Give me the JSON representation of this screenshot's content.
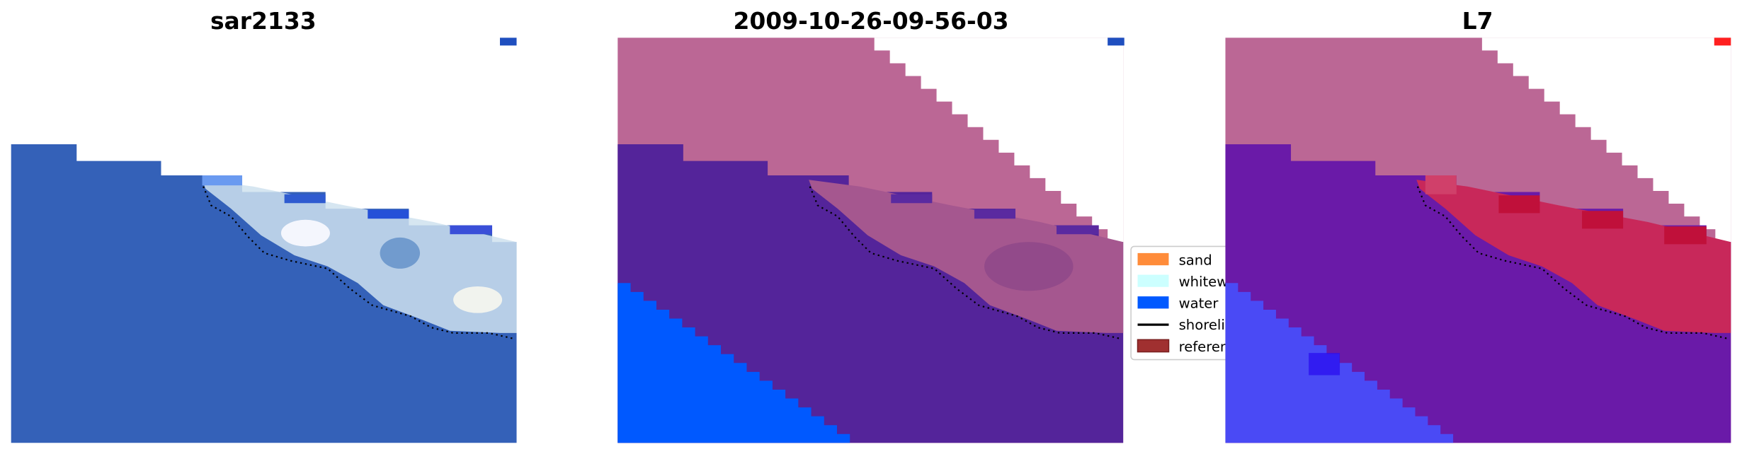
{
  "panels": [
    {
      "title": "sar2133",
      "marker_color": "#1f4fbf"
    },
    {
      "title": "2009-10-26-09-56-03",
      "marker_color": "#1f4fbf"
    },
    {
      "title": "L7",
      "marker_color": "#ff2020"
    }
  ],
  "legend": {
    "items": [
      {
        "label": "sand",
        "color": "#ff8c3a",
        "kind": "patch"
      },
      {
        "label": "whitewater",
        "color": "#ccffff",
        "kind": "patch"
      },
      {
        "label": "water",
        "color": "#0059ff",
        "kind": "patch"
      },
      {
        "label": "shoreline",
        "color": "#000000",
        "kind": "line"
      },
      {
        "label": "reference",
        "color": "#a03030",
        "kind": "patch"
      }
    ]
  },
  "colors": {
    "sar_water": "#3461b8",
    "class_sand_overlay": "#bb6795",
    "class_land": "#54249a",
    "class_water": "#0059ff",
    "l7_land": "#6a1aa8",
    "l7_shore": "#c8285a",
    "l7_water": "#4a4af5"
  }
}
